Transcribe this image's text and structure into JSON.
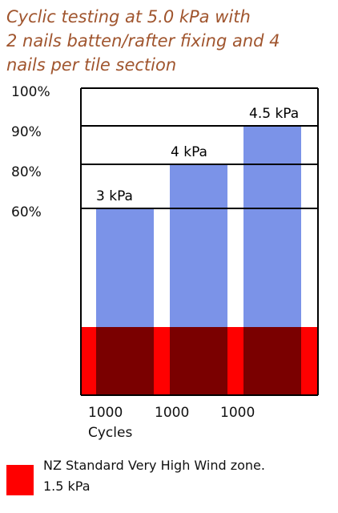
{
  "chart_data": {
    "type": "bar",
    "title": "Cyclic testing at 5.0 kPa with\n2 nails batten/rafter fixing and 4\nnails per tile section",
    "y_levels": [
      "60%",
      "80%",
      "90%",
      "100%"
    ],
    "y_level_values": [
      60,
      80,
      90,
      100
    ],
    "categories": [
      "1000",
      "1000",
      "1000"
    ],
    "x_unit_label": "Cycles",
    "series": [
      {
        "values": [
          60,
          80,
          90
        ],
        "labels": [
          "3 kPa",
          "4 kPa",
          "4.5 kPa"
        ],
        "color": "#7b93e8"
      }
    ],
    "baseline_band": {
      "label": "NZ Standard Very High Wind zone.\n1.5 kPa",
      "color": "#ff0000",
      "overlap_color": "#7a0000"
    },
    "grid": true
  }
}
